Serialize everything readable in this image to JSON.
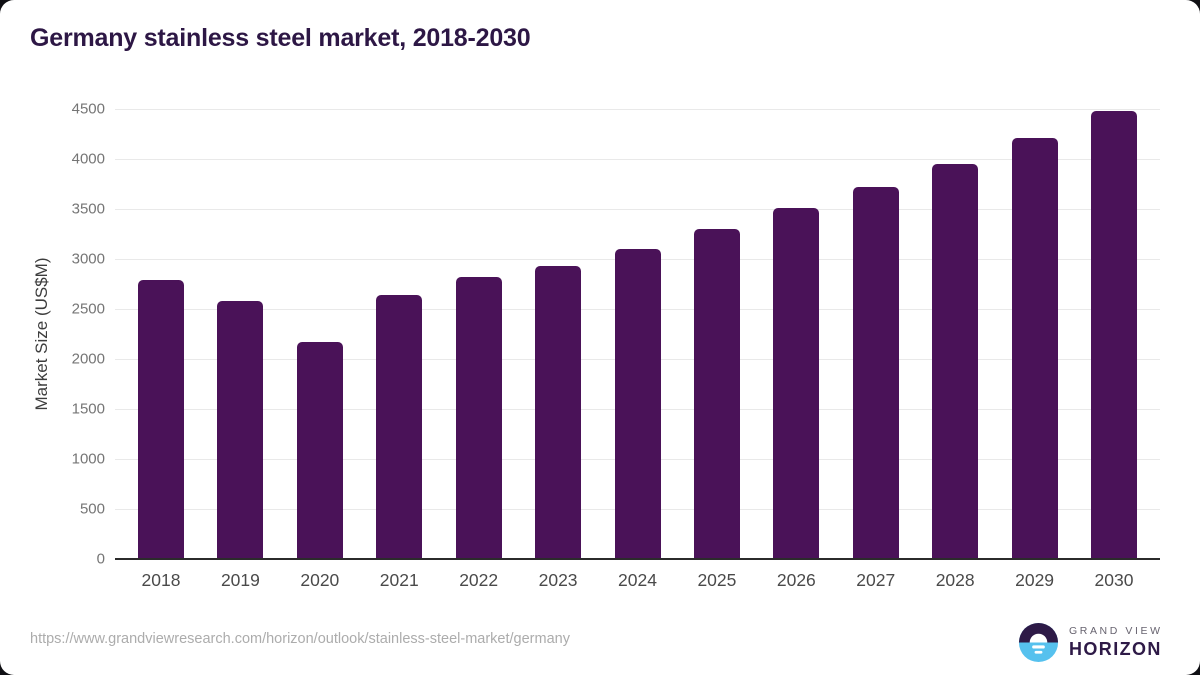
{
  "page": {
    "title": "Germany stainless steel market, 2018-2030"
  },
  "chart_data": {
    "type": "bar",
    "title": "Germany stainless steel market, 2018-2030",
    "categories": [
      "2018",
      "2019",
      "2020",
      "2021",
      "2022",
      "2023",
      "2024",
      "2025",
      "2026",
      "2027",
      "2028",
      "2029",
      "2030"
    ],
    "values": [
      2790,
      2580,
      2170,
      2640,
      2820,
      2930,
      3100,
      3300,
      3510,
      3720,
      3950,
      4210,
      4480
    ],
    "xlabel": "",
    "ylabel": "Market Size (US$M)",
    "ylim": [
      0,
      4500
    ],
    "ytick_step": 500,
    "grid": "horizontal",
    "legend": "none",
    "bar_color": "#4a1258"
  },
  "footer": {
    "source_url": "https://www.grandviewresearch.com/horizon/outlook/stainless-steel-market/germany",
    "logo_line1": "GRAND VIEW",
    "logo_line2": "HORIZON"
  },
  "colors": {
    "bar": "#4a1258",
    "title_text": "#2d1745",
    "gridline": "#e9e9e9",
    "axis_line": "#2b2b2b",
    "y_tick_text": "#757575",
    "x_tick_text": "#4a4a4a",
    "axis_title_text": "#3d3d3d",
    "url_text": "#acacac",
    "logo_blue": "#56c1ee",
    "logo_purple": "#2e1a47",
    "background": "#ffffff"
  }
}
